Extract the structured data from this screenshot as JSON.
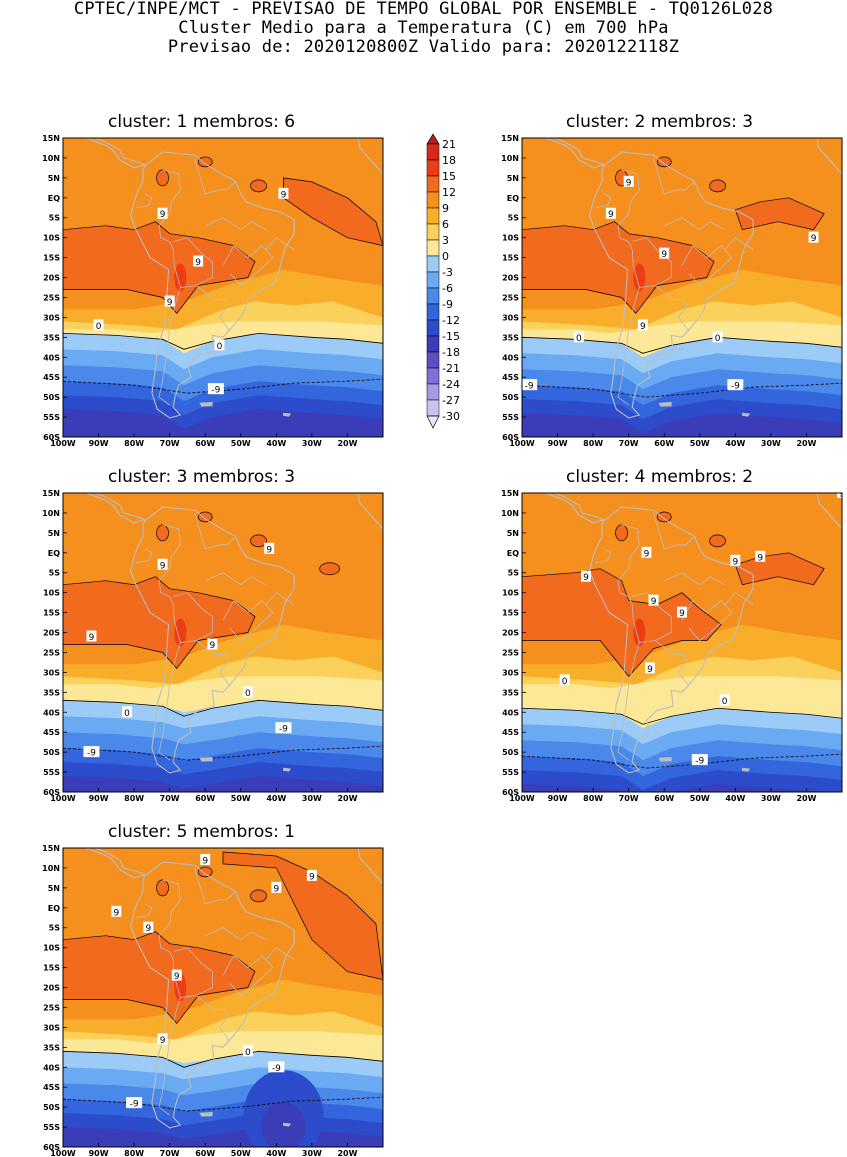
{
  "header": {
    "line1": "CPTEC/INPE/MCT - PREVISAO DE TEMPO GLOBAL POR ENSEMBLE - TQ0126L028",
    "line2": "Cluster Medio para a Temperatura (C) em 700 hPa",
    "line3": "Previsao de: 2020120800Z   Valido para: 2020122118Z"
  },
  "panels": [
    {
      "title": "cluster: 1   membros: 6"
    },
    {
      "title": "cluster: 2   membros: 3"
    },
    {
      "title": "cluster: 3   membros: 3"
    },
    {
      "title": "cluster: 4   membros: 2"
    },
    {
      "title": "cluster: 5   membros: 1"
    }
  ],
  "axes": {
    "lat_labels": [
      "15N",
      "10N",
      "5N",
      "EQ",
      "5S",
      "10S",
      "15S",
      "20S",
      "25S",
      "30S",
      "35S",
      "40S",
      "45S",
      "50S",
      "55S",
      "60S"
    ],
    "lon_labels": [
      "100W",
      "90W",
      "80W",
      "70W",
      "60W",
      "50W",
      "40W",
      "30W",
      "20W"
    ]
  },
  "colorbar": {
    "levels": [
      "21",
      "18",
      "15",
      "12",
      "9",
      "6",
      "3",
      "0",
      "-3",
      "-6",
      "-9",
      "-12",
      "-15",
      "-18",
      "-21",
      "-24",
      "-27",
      "-30"
    ],
    "colors": [
      "#b7141b",
      "#d42a1b",
      "#ee3c14",
      "#f26a1e",
      "#f5901e",
      "#f9ae2b",
      "#fad15a",
      "#fce896",
      "#9bcbf6",
      "#6aaaf2",
      "#4a88ea",
      "#3366dc",
      "#2c4ccb",
      "#3b3cb8",
      "#5d4ec6",
      "#7f6fd6",
      "#a799e6",
      "#cbc2f2"
    ],
    "top_color": "#b71c1c",
    "bottom_color": "#e8e4fa"
  },
  "contour_labels": {
    "p1": [
      "9",
      "9",
      "9",
      "9",
      "0",
      "0",
      "-9"
    ],
    "p2": [
      "9",
      "9",
      "9",
      "9",
      "9",
      "0",
      "0",
      "-9",
      "-9"
    ],
    "p3": [
      "9",
      "9",
      "9",
      "9",
      "0",
      "0",
      "-9",
      "-9"
    ],
    "p4": [
      "9",
      "9",
      "9",
      "9",
      "9",
      "9",
      "9",
      "0",
      "0",
      "-9",
      "9"
    ],
    "p5": [
      "9",
      "9",
      "9",
      "9",
      "9",
      "9",
      "9",
      "0",
      "-9",
      "-9"
    ]
  },
  "colors": {
    "c12": "#f26a1e",
    "c9": "#f5901e",
    "c6": "#f9ae2b",
    "c3": "#fad15a",
    "c0": "#fce896",
    "m3": "#9bcbf6",
    "m6": "#6aaaf2",
    "m9": "#4a88ea",
    "m12": "#3366dc",
    "m15": "#2c4ccb",
    "m18": "#3b3cb8",
    "p15": "#ee3c14",
    "land": "#bdbdbd"
  }
}
